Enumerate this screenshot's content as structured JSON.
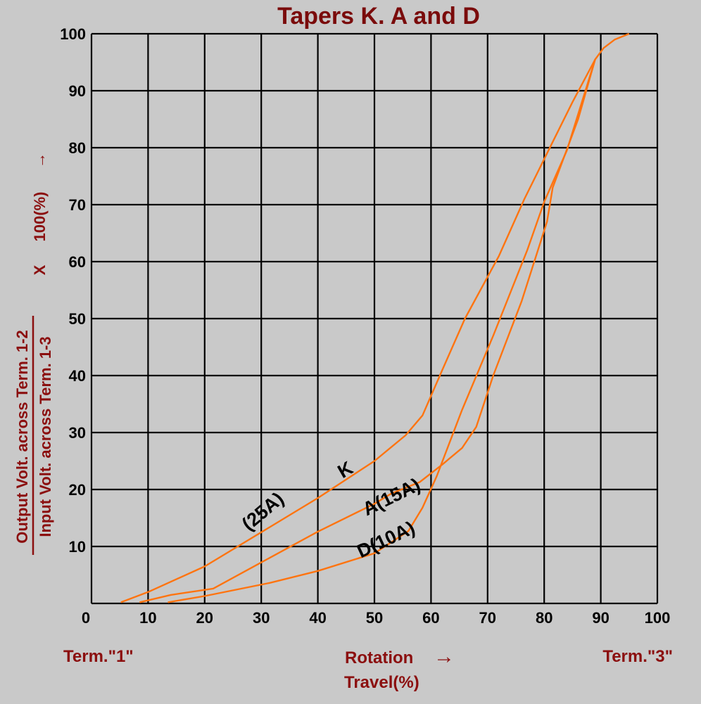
{
  "chart_data": {
    "type": "line",
    "title": "Tapers K. A and D",
    "ylabel": {
      "numerator": "Output Volt. across Term. 1-2",
      "denominator": "Input Volt. across Term. 1-3",
      "multiplier": "X",
      "suffix": "100(%)",
      "arrow": "→"
    },
    "xlabel": {
      "line1": "Rotation",
      "line2": "Travel(%)",
      "arrow": "→"
    },
    "x_end_labels": {
      "left": "Term.\"1\"",
      "right": "Term.\"3\""
    },
    "xlim": [
      0,
      100
    ],
    "ylim": [
      0,
      100
    ],
    "x_ticks": [
      "0",
      "10",
      "20",
      "30",
      "40",
      "50",
      "60",
      "70",
      "80",
      "90",
      "100"
    ],
    "y_ticks": [
      "10",
      "20",
      "30",
      "40",
      "50",
      "60",
      "70",
      "80",
      "90",
      "100"
    ],
    "grid": true,
    "line_color": "#ff7410",
    "series": [
      {
        "name": "K",
        "points": [
          [
            5.2,
            0.2
          ],
          [
            10,
            2
          ],
          [
            20,
            6.5
          ],
          [
            30,
            12.5
          ],
          [
            40,
            18.5
          ],
          [
            50,
            25
          ],
          [
            55.5,
            29.5
          ],
          [
            58.5,
            33
          ],
          [
            62,
            41
          ],
          [
            66,
            50
          ],
          [
            72,
            61
          ],
          [
            76.5,
            71
          ],
          [
            80,
            78
          ],
          [
            85,
            88
          ],
          [
            89,
            95.5
          ],
          [
            90.5,
            97.5
          ],
          [
            92.5,
            99
          ],
          [
            95,
            100
          ]
        ]
      },
      {
        "name": "A(15A)",
        "points": [
          [
            8.5,
            0.2
          ],
          [
            14,
            1.5
          ],
          [
            21.5,
            2.6
          ],
          [
            30,
            7.2
          ],
          [
            40,
            12.6
          ],
          [
            50,
            17.5
          ],
          [
            53,
            19.3
          ],
          [
            58,
            21.3
          ],
          [
            62,
            24.4
          ],
          [
            65.5,
            27.3
          ],
          [
            68,
            31
          ],
          [
            71,
            40
          ],
          [
            76,
            53
          ],
          [
            80.5,
            67
          ],
          [
            81.5,
            73
          ],
          [
            86,
            85
          ],
          [
            89,
            95.5
          ]
        ]
      },
      {
        "name": "D(10A)",
        "points": [
          [
            13.5,
            0.2
          ],
          [
            20,
            1.3
          ],
          [
            31.5,
            3.6
          ],
          [
            40,
            5.7
          ],
          [
            50,
            8.8
          ],
          [
            56,
            12.7
          ],
          [
            58.5,
            16.8
          ],
          [
            61,
            22.3
          ],
          [
            65.5,
            34
          ],
          [
            71,
            47
          ],
          [
            77,
            62
          ],
          [
            80,
            70.5
          ],
          [
            84,
            79.5
          ],
          [
            89,
            95.5
          ]
        ]
      }
    ],
    "annotations": [
      {
        "text": "K",
        "x": 45.4,
        "y": 22.5,
        "angle": -30
      },
      {
        "text": "(25A)",
        "x": 31,
        "y": 15.3,
        "angle": -40
      },
      {
        "text": "A(15A)",
        "x": 53.5,
        "y": 17.7,
        "angle": -26
      },
      {
        "text": "D(10A)",
        "x": 52.5,
        "y": 10.2,
        "angle": -25
      }
    ]
  }
}
